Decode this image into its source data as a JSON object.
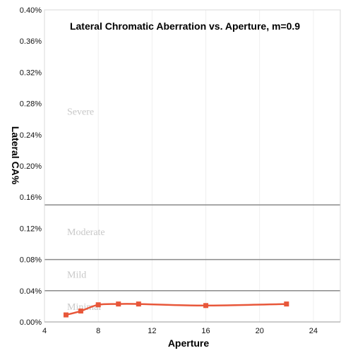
{
  "chart_data": {
    "type": "line",
    "title": "Lateral Chromatic Aberration vs. Aperture, m=0.9",
    "xlabel": "Aperture",
    "ylabel": "Lateral CA%",
    "xlim": [
      4,
      26
    ],
    "ylim": [
      0,
      0.4
    ],
    "x_ticks": [
      {
        "value": 4,
        "label": "4"
      },
      {
        "value": 8,
        "label": "8"
      },
      {
        "value": 12,
        "label": "12"
      },
      {
        "value": 16,
        "label": "16"
      },
      {
        "value": 20,
        "label": "20"
      },
      {
        "value": 24,
        "label": "24"
      }
    ],
    "y_ticks": [
      {
        "value": 0,
        "label": "0.00%"
      },
      {
        "value": 0.04,
        "label": "0.04%"
      },
      {
        "value": 0.08,
        "label": "0.08%"
      },
      {
        "value": 0.12,
        "label": "0.12%"
      },
      {
        "value": 0.16,
        "label": "0.16%"
      },
      {
        "value": 0.2,
        "label": "0.20%"
      },
      {
        "value": 0.24,
        "label": "0.24%"
      },
      {
        "value": 0.28,
        "label": "0.28%"
      },
      {
        "value": 0.32,
        "label": "0.32%"
      },
      {
        "value": 0.36,
        "label": "0.36%"
      },
      {
        "value": 0.4,
        "label": "0.40%"
      }
    ],
    "zones": [
      {
        "label": "Severe",
        "label_at": 0.27,
        "upper_boundary": null
      },
      {
        "label": "Moderate",
        "label_at": 0.116,
        "upper_boundary": 0.15
      },
      {
        "label": "Mild",
        "label_at": 0.061,
        "upper_boundary": 0.08
      },
      {
        "label": "Minimal",
        "label_at": 0.02,
        "upper_boundary": 0.04
      }
    ],
    "grid": "vertical",
    "series": [
      {
        "color": "#e8573a",
        "x": [
          5.6,
          6.7,
          8,
          9.5,
          11,
          16,
          22
        ],
        "y": [
          0.009,
          0.014,
          0.022,
          0.023,
          0.023,
          0.021,
          0.023
        ]
      }
    ]
  }
}
